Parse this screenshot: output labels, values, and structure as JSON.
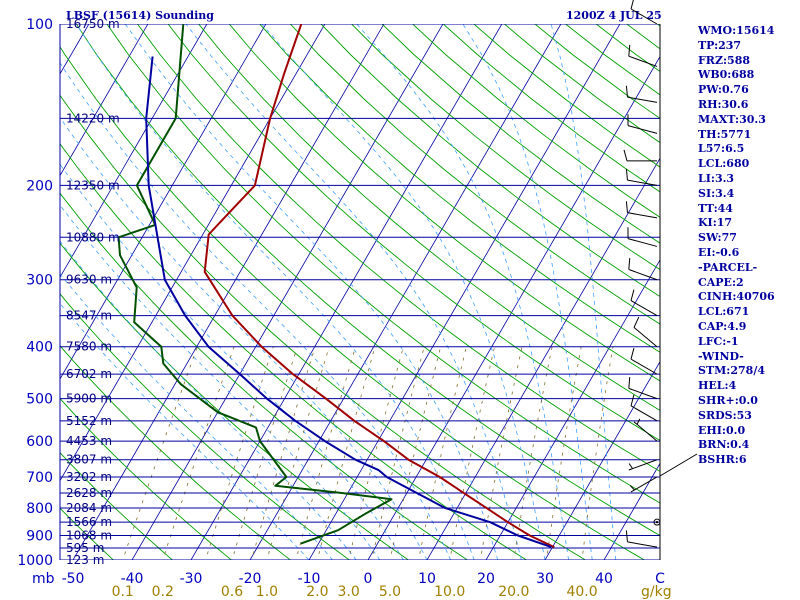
{
  "header": {
    "title": "LBSF (15614) Sounding",
    "datetime": "1200Z  4 JUL 25"
  },
  "stats": [
    "WMO:15614",
    "TP:237",
    "FRZ:588",
    "WB0:688",
    "PW:0.76",
    "RH:30.6",
    "MAXT:30.3",
    "TH:5771",
    "L57:6.5",
    "LCL:680",
    "LI:3.3",
    "SI:3.4",
    "TT:44",
    "KI:17",
    "SW:77",
    "EI:-0.6",
    "-PARCEL-",
    "CAPE:2",
    "CINH:40706",
    "LCL:671",
    "CAP:4.9",
    "LFC:-1",
    "-WIND-",
    "STM:278/4",
    "HEL:4",
    "SHR+:0.0",
    "SRDS:53",
    "EHI:0.0",
    "BRN:0.4",
    "BSHR:6"
  ],
  "colors": {
    "isobar": "#0000a0",
    "isotherm": "#0000a0",
    "dry_adiabat": "#00a000",
    "moist_adiabat": "#40a0ff",
    "mixing_ratio": "#807030",
    "temperature": "#a00000",
    "dewpoint": "#005000",
    "parcel": "#0000a0",
    "wind_barb": "#000000",
    "axis_temp_labels": "#0000c0",
    "mixing_labels": "#a08000"
  },
  "chart_data": {
    "type": "skew-t",
    "title": "LBSF (15614) Sounding",
    "pressure_axis": {
      "label": "mb",
      "ticks": [
        "100",
        "200",
        "300",
        "400",
        "500",
        "600",
        "700",
        "800",
        "900",
        "1000"
      ],
      "log_scale": true,
      "range": [
        1000,
        100
      ]
    },
    "temperature_axis": {
      "ticks": [
        "-50",
        "-40",
        "-30",
        "-20",
        "-10",
        "0",
        "10",
        "20",
        "30",
        "40"
      ],
      "range": [
        -50,
        50
      ],
      "skew": true
    },
    "heights": [
      {
        "p": 100,
        "label": "16750 m"
      },
      {
        "p": 150,
        "label": "14220 m"
      },
      {
        "p": 200,
        "label": "12350 m"
      },
      {
        "p": 250,
        "label": "10880 m"
      },
      {
        "p": 300,
        "label": "9630 m"
      },
      {
        "p": 350,
        "label": "8547 m"
      },
      {
        "p": 400,
        "label": "7580 m"
      },
      {
        "p": 450,
        "label": "6702 m"
      },
      {
        "p": 500,
        "label": "5900 m"
      },
      {
        "p": 550,
        "label": "5152 m"
      },
      {
        "p": 600,
        "label": "4453 m"
      },
      {
        "p": 650,
        "label": "3807 m"
      },
      {
        "p": 700,
        "label": "3202 m"
      },
      {
        "p": 750,
        "label": "2628 m"
      },
      {
        "p": 800,
        "label": "2084 m"
      },
      {
        "p": 850,
        "label": "1566 m"
      },
      {
        "p": 900,
        "label": "1068 m"
      },
      {
        "p": 950,
        "label": "595 m"
      },
      {
        "p": 1000,
        "label": "123 m"
      }
    ],
    "mixing_ratio_labels": [
      {
        "w": 0.1,
        "label": "0.1"
      },
      {
        "w": 0.2,
        "label": "0.2"
      },
      {
        "w": 0.6,
        "label": "0.6"
      },
      {
        "w": 1.0,
        "label": "1.0"
      },
      {
        "w": 2.0,
        "label": "2.0"
      },
      {
        "w": 3.0,
        "label": "3.0"
      },
      {
        "w": 5.0,
        "label": "5.0"
      },
      {
        "w": 10.0,
        "label": "10.0"
      },
      {
        "w": 20.0,
        "label": "20.0"
      },
      {
        "w": 40.0,
        "label": "40.0"
      }
    ],
    "mixing_ratio_unit": "g/kg",
    "series": [
      {
        "name": "Temperature",
        "points": [
          [
            100,
            -64
          ],
          [
            124,
            -62
          ],
          [
            150,
            -60
          ],
          [
            200,
            -56
          ],
          [
            230,
            -58
          ],
          [
            247,
            -59
          ],
          [
            290,
            -56
          ],
          [
            350,
            -47
          ],
          [
            400,
            -39
          ],
          [
            450,
            -31
          ],
          [
            500,
            -23
          ],
          [
            550,
            -16
          ],
          [
            600,
            -9
          ],
          [
            650,
            -3
          ],
          [
            700,
            4
          ],
          [
            735,
            8
          ],
          [
            744,
            9
          ],
          [
            800,
            15
          ],
          [
            850,
            20
          ],
          [
            900,
            25
          ],
          [
            946,
            30.3
          ]
        ]
      },
      {
        "name": "Dewpoint",
        "points": [
          [
            100,
            -84
          ],
          [
            150,
            -76
          ],
          [
            200,
            -76
          ],
          [
            237,
            -69
          ],
          [
            250,
            -74
          ],
          [
            270,
            -72
          ],
          [
            310,
            -66
          ],
          [
            360,
            -63
          ],
          [
            400,
            -56
          ],
          [
            430,
            -54
          ],
          [
            470,
            -49
          ],
          [
            530,
            -40
          ],
          [
            566,
            -32
          ],
          [
            600,
            -30
          ],
          [
            700,
            -22
          ],
          [
            727,
            -23
          ],
          [
            750,
            -11
          ],
          [
            770,
            -2
          ],
          [
            820,
            -5
          ],
          [
            880,
            -8
          ],
          [
            932,
            -13
          ]
        ]
      },
      {
        "name": "Parcel",
        "points": [
          [
            115,
            -86
          ],
          [
            150,
            -81
          ],
          [
            200,
            -74
          ],
          [
            300,
            -62
          ],
          [
            350,
            -55
          ],
          [
            400,
            -48
          ],
          [
            450,
            -40
          ],
          [
            500,
            -33
          ],
          [
            550,
            -26
          ],
          [
            600,
            -19
          ],
          [
            650,
            -12
          ],
          [
            680,
            -7
          ],
          [
            700,
            -5
          ],
          [
            800,
            8
          ],
          [
            850,
            17
          ],
          [
            900,
            23
          ],
          [
            946,
            29.8
          ]
        ]
      }
    ],
    "wind_barbs": [
      {
        "p": 100,
        "dir": 300,
        "spd": 10
      },
      {
        "p": 120,
        "dir": 290,
        "spd": 10
      },
      {
        "p": 140,
        "dir": 280,
        "spd": 10
      },
      {
        "p": 160,
        "dir": 285,
        "spd": 10
      },
      {
        "p": 180,
        "dir": 270,
        "spd": 10
      },
      {
        "p": 200,
        "dir": 280,
        "spd": 10
      },
      {
        "p": 230,
        "dir": 280,
        "spd": 10
      },
      {
        "p": 260,
        "dir": 285,
        "spd": 10
      },
      {
        "p": 300,
        "dir": 290,
        "spd": 10
      },
      {
        "p": 350,
        "dir": 300,
        "spd": 10
      },
      {
        "p": 400,
        "dir": 310,
        "spd": 10
      },
      {
        "p": 450,
        "dir": 300,
        "spd": 10
      },
      {
        "p": 500,
        "dir": 290,
        "spd": 10
      },
      {
        "p": 550,
        "dir": 300,
        "spd": 10
      },
      {
        "p": 600,
        "dir": 310,
        "spd": 5
      },
      {
        "p": 650,
        "dir": 250,
        "spd": 5
      },
      {
        "p": 700,
        "dir": 240,
        "spd": 5
      },
      {
        "p": 850,
        "dir": 0,
        "spd": 0
      },
      {
        "p": 946,
        "dir": 280,
        "spd": 10
      }
    ]
  }
}
